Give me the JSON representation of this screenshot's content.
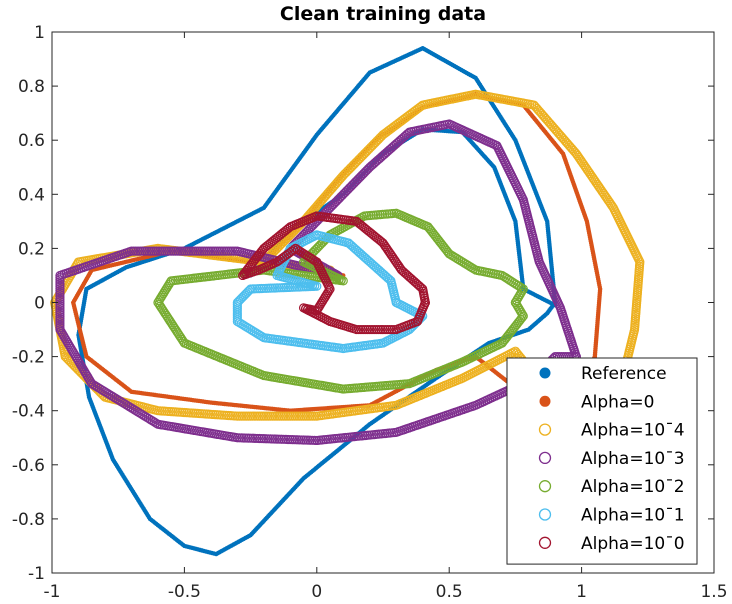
{
  "chart_data": {
    "type": "scatter",
    "title": "Clean training data",
    "xlabel": "",
    "ylabel": "",
    "xlim": [
      -1,
      1.5
    ],
    "ylim": [
      -1,
      1
    ],
    "xticks": [
      "-1",
      "-0.5",
      "0",
      "0.5",
      "1",
      "1.5"
    ],
    "yticks": [
      "1",
      "0.8",
      "0.6",
      "0.4",
      "0.2",
      "0",
      "-0.2",
      "-0.4",
      "-0.6",
      "-0.8",
      "-1"
    ],
    "grid": false,
    "legend_position": "bottom-right",
    "series": [
      {
        "name": "Reference",
        "color": "#0072BD",
        "marker": "filled-dot",
        "points": [
          [
            0.9,
            0.0
          ],
          [
            0.87,
            0.3
          ],
          [
            0.75,
            0.6
          ],
          [
            0.6,
            0.83
          ],
          [
            0.4,
            0.94
          ],
          [
            0.2,
            0.85
          ],
          [
            0.0,
            0.62
          ],
          [
            -0.2,
            0.35
          ],
          [
            -0.5,
            0.2
          ],
          [
            -0.72,
            0.13
          ],
          [
            -0.87,
            0.05
          ],
          [
            -0.9,
            -0.12
          ],
          [
            -0.86,
            -0.35
          ],
          [
            -0.77,
            -0.58
          ],
          [
            -0.63,
            -0.8
          ],
          [
            -0.5,
            -0.9
          ],
          [
            -0.38,
            -0.93
          ],
          [
            -0.25,
            -0.86
          ],
          [
            -0.05,
            -0.65
          ],
          [
            0.2,
            -0.45
          ],
          [
            0.45,
            -0.28
          ],
          [
            0.65,
            -0.15
          ],
          [
            0.8,
            -0.1
          ],
          [
            0.87,
            -0.04
          ],
          [
            0.9,
            0.0
          ]
        ]
      },
      {
        "name": "Reference",
        "color": "#0072BD",
        "marker": "filled-dot",
        "points": [
          [
            0.9,
            -0.01
          ],
          [
            0.78,
            0.05
          ],
          [
            0.75,
            0.3
          ],
          [
            0.67,
            0.5
          ],
          [
            0.55,
            0.63
          ],
          [
            0.4,
            0.64
          ],
          [
            0.25,
            0.55
          ],
          [
            0.1,
            0.4
          ],
          [
            -0.05,
            0.3
          ],
          [
            -0.18,
            0.18
          ],
          [
            -0.25,
            0.1
          ]
        ]
      },
      {
        "name": "Alpha=0",
        "color": "#D95319",
        "marker": "filled-dot",
        "points": [
          [
            1.05,
            -0.2
          ],
          [
            1.07,
            0.05
          ],
          [
            1.02,
            0.3
          ],
          [
            0.93,
            0.55
          ],
          [
            0.78,
            0.73
          ],
          [
            0.6,
            0.77
          ],
          [
            0.4,
            0.72
          ],
          [
            0.22,
            0.6
          ],
          [
            0.08,
            0.45
          ],
          [
            -0.05,
            0.3
          ],
          [
            -0.15,
            0.2
          ],
          [
            -0.2,
            0.15
          ],
          [
            0.1,
            0.1
          ],
          [
            -0.55,
            0.19
          ],
          [
            -0.85,
            0.12
          ],
          [
            -0.92,
            0.0
          ],
          [
            -0.87,
            -0.2
          ],
          [
            -0.7,
            -0.33
          ],
          [
            -0.4,
            -0.37
          ],
          [
            -0.1,
            -0.4
          ],
          [
            0.2,
            -0.38
          ],
          [
            0.45,
            -0.25
          ],
          [
            0.6,
            -0.2
          ],
          [
            0.73,
            -0.3
          ],
          [
            0.85,
            -0.35
          ],
          [
            1.0,
            -0.3
          ],
          [
            1.05,
            -0.2
          ]
        ]
      },
      {
        "name": "Alpha=10ˉ4",
        "color": "#EDB120",
        "marker": "open-circle",
        "points": [
          [
            1.15,
            -0.3
          ],
          [
            1.2,
            -0.1
          ],
          [
            1.22,
            0.15
          ],
          [
            1.12,
            0.35
          ],
          [
            0.98,
            0.55
          ],
          [
            0.82,
            0.73
          ],
          [
            0.6,
            0.77
          ],
          [
            0.4,
            0.73
          ],
          [
            0.25,
            0.62
          ],
          [
            0.1,
            0.47
          ],
          [
            -0.05,
            0.3
          ],
          [
            -0.2,
            0.15
          ],
          [
            0.05,
            0.12
          ],
          [
            -0.6,
            0.2
          ],
          [
            -0.9,
            0.15
          ],
          [
            -0.99,
            0.0
          ],
          [
            -0.95,
            -0.2
          ],
          [
            -0.8,
            -0.35
          ],
          [
            -0.6,
            -0.4
          ],
          [
            -0.3,
            -0.42
          ],
          [
            0.0,
            -0.42
          ],
          [
            0.3,
            -0.38
          ],
          [
            0.55,
            -0.28
          ],
          [
            0.75,
            -0.18
          ],
          [
            0.85,
            -0.3
          ],
          [
            1.0,
            -0.38
          ],
          [
            1.15,
            -0.3
          ]
        ]
      },
      {
        "name": "Alpha=10ˉ3",
        "color": "#7E2F8E",
        "marker": "open-circle",
        "points": [
          [
            0.98,
            -0.2
          ],
          [
            0.92,
            -0.02
          ],
          [
            0.84,
            0.15
          ],
          [
            0.78,
            0.38
          ],
          [
            0.68,
            0.58
          ],
          [
            0.5,
            0.66
          ],
          [
            0.35,
            0.63
          ],
          [
            0.2,
            0.5
          ],
          [
            0.05,
            0.35
          ],
          [
            -0.1,
            0.2
          ],
          [
            0.08,
            0.1
          ],
          [
            -0.3,
            0.19
          ],
          [
            -0.7,
            0.19
          ],
          [
            -0.97,
            0.1
          ],
          [
            -0.97,
            -0.1
          ],
          [
            -0.85,
            -0.3
          ],
          [
            -0.6,
            -0.45
          ],
          [
            -0.3,
            -0.5
          ],
          [
            0.0,
            -0.51
          ],
          [
            0.3,
            -0.48
          ],
          [
            0.6,
            -0.38
          ],
          [
            0.82,
            -0.28
          ],
          [
            0.9,
            -0.2
          ],
          [
            0.98,
            -0.2
          ]
        ]
      },
      {
        "name": "Alpha=10ˉ2",
        "color": "#77AC30",
        "marker": "open-circle",
        "points": [
          [
            0.75,
            0.0
          ],
          [
            0.78,
            0.05
          ],
          [
            0.7,
            0.1
          ],
          [
            0.6,
            0.12
          ],
          [
            0.5,
            0.18
          ],
          [
            0.42,
            0.28
          ],
          [
            0.3,
            0.33
          ],
          [
            0.18,
            0.32
          ],
          [
            0.05,
            0.25
          ],
          [
            -0.05,
            0.15
          ],
          [
            0.1,
            0.08
          ],
          [
            -0.2,
            0.12
          ],
          [
            -0.55,
            0.08
          ],
          [
            -0.6,
            0.0
          ],
          [
            -0.5,
            -0.15
          ],
          [
            -0.2,
            -0.27
          ],
          [
            0.1,
            -0.32
          ],
          [
            0.35,
            -0.3
          ],
          [
            0.55,
            -0.22
          ],
          [
            0.7,
            -0.15
          ],
          [
            0.78,
            -0.05
          ],
          [
            0.75,
            0.0
          ]
        ]
      },
      {
        "name": "Alpha=10ˉ1",
        "color": "#4DBEEE",
        "marker": "open-circle",
        "points": [
          [
            0.3,
            0.0
          ],
          [
            0.28,
            0.08
          ],
          [
            0.2,
            0.15
          ],
          [
            0.12,
            0.22
          ],
          [
            0.0,
            0.25
          ],
          [
            -0.1,
            0.2
          ],
          [
            -0.15,
            0.1
          ],
          [
            0.0,
            0.06
          ],
          [
            -0.25,
            0.05
          ],
          [
            -0.3,
            0.0
          ],
          [
            -0.3,
            -0.07
          ],
          [
            -0.2,
            -0.13
          ],
          [
            -0.05,
            -0.15
          ],
          [
            0.1,
            -0.17
          ],
          [
            0.25,
            -0.15
          ],
          [
            0.35,
            -0.1
          ],
          [
            0.4,
            -0.05
          ],
          [
            0.3,
            0.0
          ]
        ]
      },
      {
        "name": "Alpha=10ˉ0",
        "color": "#A2142F",
        "marker": "open-circle",
        "points": [
          [
            0.41,
            0.0
          ],
          [
            0.4,
            0.05
          ],
          [
            0.32,
            0.12
          ],
          [
            0.25,
            0.22
          ],
          [
            0.15,
            0.3
          ],
          [
            0.0,
            0.32
          ],
          [
            -0.1,
            0.28
          ],
          [
            -0.2,
            0.2
          ],
          [
            -0.28,
            0.1
          ],
          [
            -0.22,
            0.12
          ],
          [
            -0.15,
            0.15
          ],
          [
            -0.08,
            0.2
          ],
          [
            0.0,
            0.15
          ],
          [
            0.05,
            0.05
          ],
          [
            0.0,
            -0.03
          ],
          [
            -0.05,
            -0.02
          ],
          [
            0.05,
            -0.07
          ],
          [
            0.15,
            -0.1
          ],
          [
            0.3,
            -0.1
          ],
          [
            0.38,
            -0.07
          ],
          [
            0.41,
            0.0
          ]
        ]
      }
    ]
  }
}
